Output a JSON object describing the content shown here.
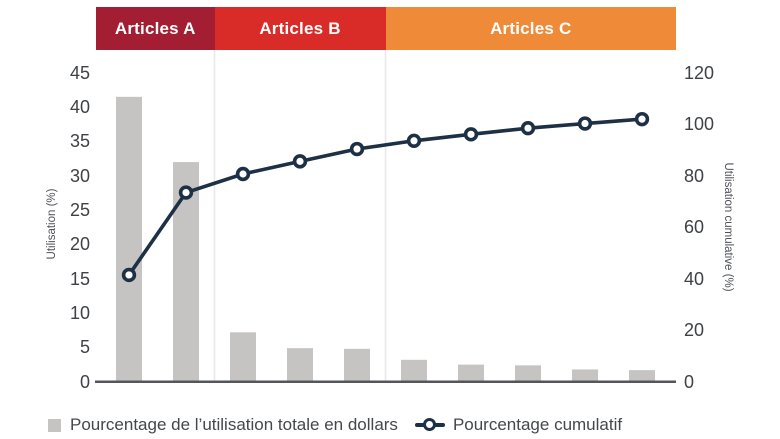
{
  "chart_data": {
    "type": "pareto (bar + cumulative line)",
    "groups": [
      {
        "label": "Articles A",
        "color": "#A31D33",
        "bar_count": 2
      },
      {
        "label": "Articles B",
        "color": "#D92B28",
        "bar_count": 3
      },
      {
        "label": "Articles C",
        "color": "#EF8A39",
        "bar_count": 5
      }
    ],
    "bars": {
      "name": "Pourcentage de l’utilisation totale en dollars",
      "color": "#C5C4C2",
      "values": [
        41.5,
        32,
        7.2,
        4.9,
        4.8,
        3.2,
        2.5,
        2.4,
        1.8,
        1.7
      ]
    },
    "line": {
      "name": "Pourcentage cumulatif",
      "color": "#1D3045",
      "marker": "open-circle",
      "values": [
        41.5,
        73.5,
        80.7,
        85.6,
        90.4,
        93.6,
        96.1,
        98.5,
        100.3,
        102
      ]
    },
    "left_axis": {
      "title": "Utilisation (%)",
      "min": 0,
      "max": 45,
      "ticks": [
        45,
        40,
        35,
        30,
        25,
        20,
        15,
        10,
        5,
        0
      ]
    },
    "right_axis": {
      "title": "Utilisation cumulative (%)",
      "min": 0,
      "max": 120,
      "ticks": [
        120,
        100,
        80,
        60,
        40,
        20,
        0
      ]
    },
    "grid": "vertical group dividers only",
    "legend_position": "bottom"
  }
}
